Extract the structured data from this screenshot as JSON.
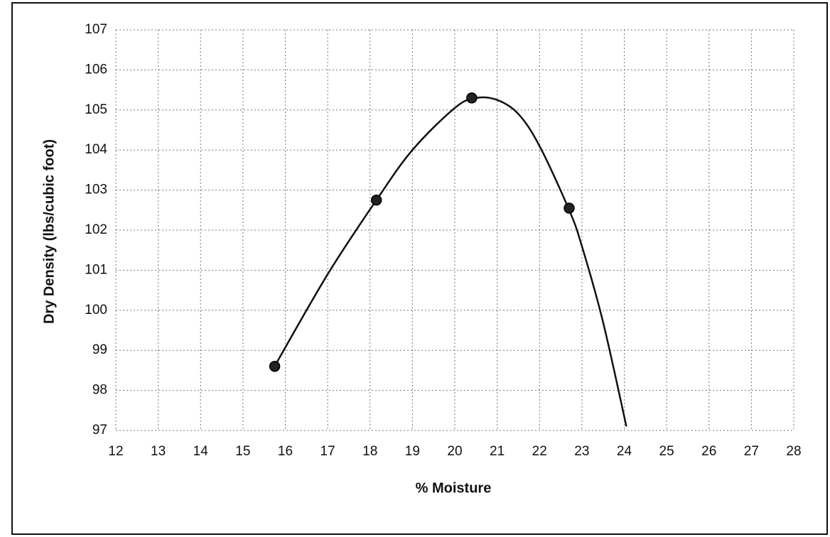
{
  "chart_data": {
    "type": "scatter",
    "x_label": "% Moisture",
    "y_label": "Dry Density (lbs/cubic foot)",
    "xlim": [
      12,
      28
    ],
    "xticks": [
      12,
      13,
      14,
      15,
      16,
      17,
      18,
      19,
      20,
      21,
      22,
      23,
      24,
      25,
      26,
      27,
      28
    ],
    "ylim": [
      97,
      107
    ],
    "yticks": [
      97,
      98,
      99,
      100,
      101,
      102,
      103,
      104,
      105,
      106,
      107
    ],
    "grid": true,
    "series": [
      {
        "mode": "markers",
        "color": "#222222",
        "x": [
          15.75,
          18.15,
          20.4,
          22.7
        ],
        "values": [
          98.6,
          102.75,
          105.3,
          102.55
        ]
      },
      {
        "mode": "line",
        "color": "#111111",
        "x": [
          15.8,
          17,
          18.15,
          19,
          20,
          20.5,
          21,
          21.5,
          22,
          22.7,
          23,
          23.5,
          24.05
        ],
        "values": [
          98.7,
          100.9,
          102.75,
          104.0,
          105.05,
          105.3,
          105.25,
          104.9,
          104.1,
          102.5,
          101.6,
          99.7,
          97.1
        ]
      }
    ]
  }
}
